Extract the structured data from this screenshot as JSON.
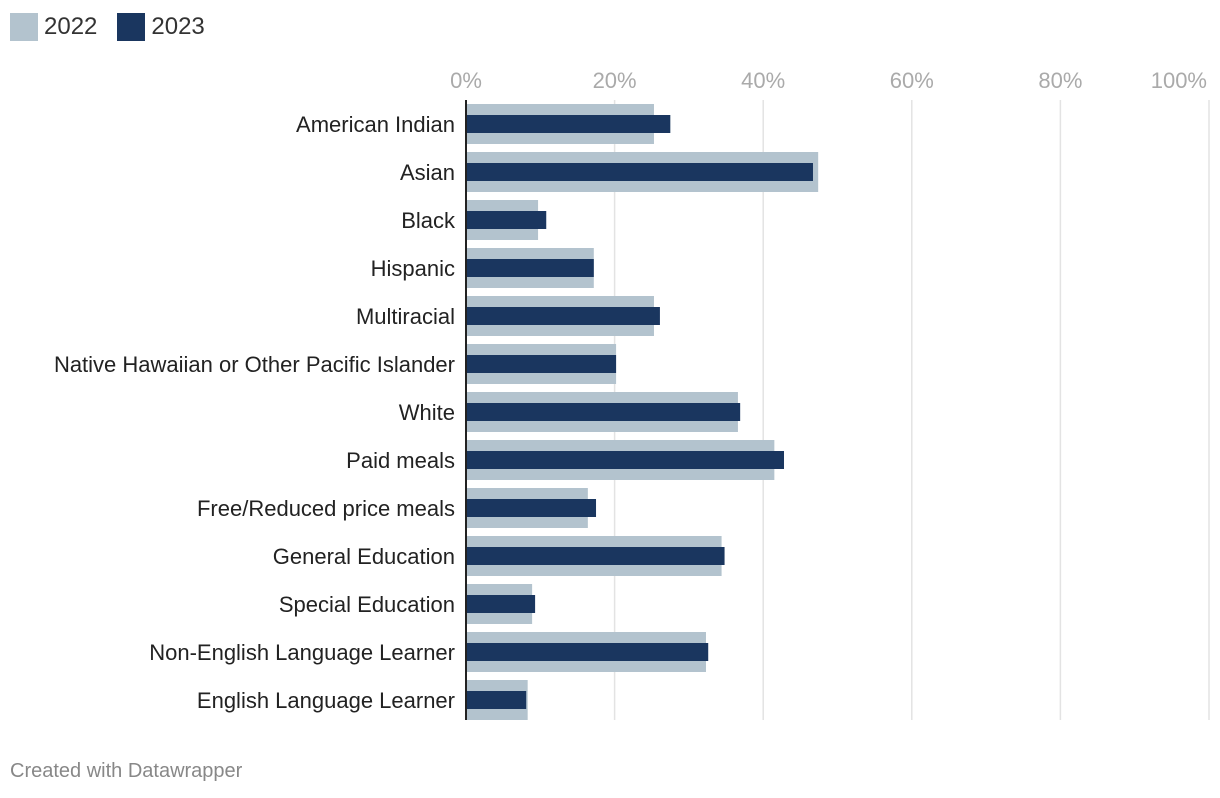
{
  "chart_data": {
    "type": "bar",
    "orientation": "horizontal",
    "categories": [
      "American Indian",
      "Asian",
      "Black",
      "Hispanic",
      "Multiracial",
      "Native Hawaiian or Other Pacific Islander",
      "White",
      "Paid meals",
      "Free/Reduced price meals",
      "General Education",
      "Special Education",
      "Non-English Language Learner",
      "English Language Learner"
    ],
    "series": [
      {
        "name": "2022",
        "color": "#b3c3ce",
        "values": [
          25.3,
          47.4,
          9.7,
          17.2,
          25.3,
          20.2,
          36.6,
          41.5,
          16.4,
          34.4,
          8.9,
          32.3,
          8.3
        ]
      },
      {
        "name": "2023",
        "color": "#1a365f",
        "values": [
          27.5,
          46.7,
          10.8,
          17.2,
          26.1,
          20.2,
          36.9,
          42.8,
          17.5,
          34.8,
          9.3,
          32.6,
          8.1
        ]
      }
    ],
    "xlim": [
      0,
      100
    ],
    "xticks": [
      "0%",
      "20%",
      "40%",
      "60%",
      "80%",
      "100%"
    ],
    "grid": true,
    "legend_position": "top-left"
  },
  "footer": "Created with Datawrapper"
}
